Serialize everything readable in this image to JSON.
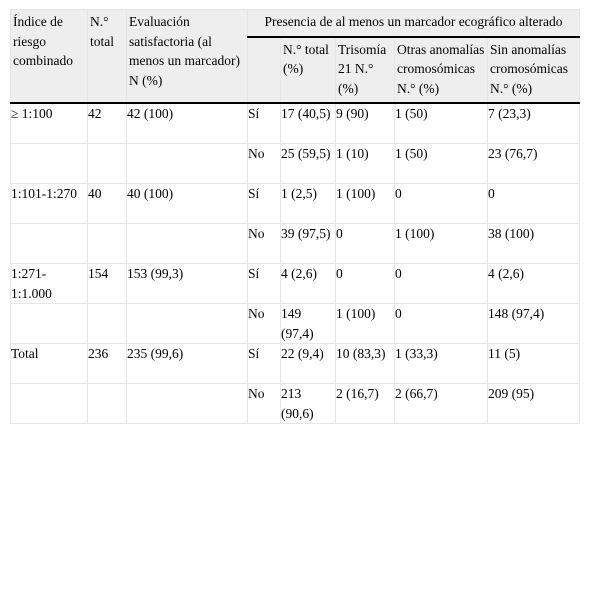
{
  "table": {
    "headers": {
      "risk_index": "Índice de riesgo combinado",
      "n_total": "N.° total",
      "evaluation": "Evaluación satisfactoria (al menos un marcador)",
      "evaluation_unit": "N (%)",
      "group": "Presencia de al menos un marcador ecográfico alterado",
      "sub_n_total": "N.° total (%)",
      "sub_trisomy": "Trisomía 21 N.° (%)",
      "sub_other": "Otras anomalías cromosómicas N.° (%)",
      "sub_none": "Sin anomalías cromosómicas N.° (%)"
    },
    "groups": [
      {
        "risk": "≥ 1:100",
        "n_total": "42",
        "evaluation": "42 (100)",
        "rows": [
          {
            "marker": "Sí",
            "n_total_pct": "17 (40,5)",
            "trisomy": "9 (90)",
            "other": "1 (50)",
            "none": "7 (23,3)"
          },
          {
            "marker": "No",
            "n_total_pct": "25 (59,5)",
            "trisomy": "1 (10)",
            "other": "1 (50)",
            "none": "23 (76,7)"
          }
        ]
      },
      {
        "risk": "1:101-1:270",
        "n_total": "40",
        "evaluation": "40 (100)",
        "rows": [
          {
            "marker": "Sí",
            "n_total_pct": "1 (2,5)",
            "trisomy": "1 (100)",
            "other": "0",
            "none": "0"
          },
          {
            "marker": "No",
            "n_total_pct": "39 (97,5)",
            "trisomy": "0",
            "other": "1 (100)",
            "none": "38 (100)"
          }
        ]
      },
      {
        "risk": "1:271-1:1.000",
        "n_total": "154",
        "evaluation": "153 (99,3)",
        "rows": [
          {
            "marker": "Sí",
            "n_total_pct": "4 (2,6)",
            "trisomy": "0",
            "other": "0",
            "none": "4 (2,6)"
          },
          {
            "marker": "No",
            "n_total_pct": "149 (97,4)",
            "trisomy": "1 (100)",
            "other": "0",
            "none": "148 (97,4)"
          }
        ]
      },
      {
        "risk": "Total",
        "n_total": "236",
        "evaluation": "235 (99,6)",
        "rows": [
          {
            "marker": "Sí",
            "n_total_pct": "22 (9,4)",
            "trisomy": "10 (83,3)",
            "other": "1 (33,3)",
            "none": "11 (5)"
          },
          {
            "marker": "No",
            "n_total_pct": "213 (90,6)",
            "trisomy": "2 (16,7)",
            "other": "2 (66,7)",
            "none": "209 (95)"
          }
        ]
      }
    ]
  }
}
